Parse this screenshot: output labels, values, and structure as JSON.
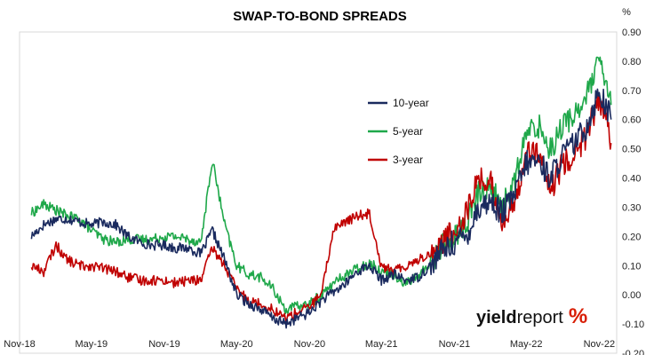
{
  "chart_data": {
    "type": "line",
    "title": "SWAP-TO-BOND SPREADS",
    "y_unit": "%",
    "ylim": [
      -0.2,
      0.9
    ],
    "y_ticks": [
      "0.90",
      "0.80",
      "0.70",
      "0.60",
      "0.50",
      "0.40",
      "0.30",
      "0.20",
      "0.10",
      "0.00",
      "-0.10",
      "-0.20"
    ],
    "y_tick_values": [
      0.9,
      0.8,
      0.7,
      0.6,
      0.5,
      0.4,
      0.3,
      0.2,
      0.1,
      0.0,
      -0.1,
      -0.2
    ],
    "x_ticks": [
      "Nov-18",
      "May-19",
      "Nov-19",
      "May-20",
      "Nov-20",
      "May-21",
      "Nov-21",
      "May-22",
      "Nov-22"
    ],
    "xlim": [
      "2018-11-01",
      "2022-12-15"
    ],
    "grid": false,
    "legend_position": "upper-middle",
    "series": [
      {
        "name": "10-year",
        "color": "#1a2a5e",
        "points": [
          [
            "2018-12-01",
            0.2
          ],
          [
            "2019-01-01",
            0.24
          ],
          [
            "2019-02-01",
            0.26
          ],
          [
            "2019-03-01",
            0.26
          ],
          [
            "2019-04-01",
            0.25
          ],
          [
            "2019-05-01",
            0.24
          ],
          [
            "2019-06-01",
            0.25
          ],
          [
            "2019-07-01",
            0.24
          ],
          [
            "2019-08-01",
            0.2
          ],
          [
            "2019-09-01",
            0.18
          ],
          [
            "2019-10-01",
            0.17
          ],
          [
            "2019-11-01",
            0.17
          ],
          [
            "2019-12-01",
            0.16
          ],
          [
            "2020-01-01",
            0.16
          ],
          [
            "2020-02-01",
            0.14
          ],
          [
            "2020-03-01",
            0.22
          ],
          [
            "2020-04-01",
            0.12
          ],
          [
            "2020-05-01",
            0.0
          ],
          [
            "2020-06-01",
            -0.03
          ],
          [
            "2020-07-01",
            -0.05
          ],
          [
            "2020-08-01",
            -0.08
          ],
          [
            "2020-09-01",
            -0.1
          ],
          [
            "2020-10-01",
            -0.08
          ],
          [
            "2020-11-01",
            -0.06
          ],
          [
            "2020-12-01",
            -0.02
          ],
          [
            "2021-01-01",
            0.01
          ],
          [
            "2021-02-01",
            0.04
          ],
          [
            "2021-03-01",
            0.08
          ],
          [
            "2021-04-01",
            0.1
          ],
          [
            "2021-05-01",
            0.05
          ],
          [
            "2021-06-01",
            0.07
          ],
          [
            "2021-07-01",
            0.05
          ],
          [
            "2021-08-01",
            0.06
          ],
          [
            "2021-09-01",
            0.1
          ],
          [
            "2021-10-01",
            0.15
          ],
          [
            "2021-11-01",
            0.18
          ],
          [
            "2021-12-01",
            0.2
          ],
          [
            "2022-01-01",
            0.3
          ],
          [
            "2022-02-01",
            0.32
          ],
          [
            "2022-03-01",
            0.28
          ],
          [
            "2022-04-01",
            0.34
          ],
          [
            "2022-05-01",
            0.45
          ],
          [
            "2022-06-01",
            0.46
          ],
          [
            "2022-07-01",
            0.4
          ],
          [
            "2022-08-01",
            0.48
          ],
          [
            "2022-09-01",
            0.52
          ],
          [
            "2022-10-01",
            0.58
          ],
          [
            "2022-11-01",
            0.7
          ],
          [
            "2022-12-01",
            0.6
          ]
        ]
      },
      {
        "name": "5-year",
        "color": "#1fa84a",
        "points": [
          [
            "2018-12-01",
            0.28
          ],
          [
            "2019-01-01",
            0.31
          ],
          [
            "2019-02-01",
            0.29
          ],
          [
            "2019-03-01",
            0.27
          ],
          [
            "2019-04-01",
            0.26
          ],
          [
            "2019-05-01",
            0.22
          ],
          [
            "2019-06-01",
            0.19
          ],
          [
            "2019-07-01",
            0.18
          ],
          [
            "2019-08-01",
            0.19
          ],
          [
            "2019-09-01",
            0.19
          ],
          [
            "2019-10-01",
            0.19
          ],
          [
            "2019-11-01",
            0.2
          ],
          [
            "2019-12-01",
            0.2
          ],
          [
            "2020-01-01",
            0.19
          ],
          [
            "2020-02-01",
            0.18
          ],
          [
            "2020-03-01",
            0.46
          ],
          [
            "2020-04-01",
            0.24
          ],
          [
            "2020-05-01",
            0.1
          ],
          [
            "2020-06-01",
            0.07
          ],
          [
            "2020-07-01",
            0.06
          ],
          [
            "2020-08-01",
            0.02
          ],
          [
            "2020-09-01",
            -0.05
          ],
          [
            "2020-10-01",
            -0.04
          ],
          [
            "2020-11-01",
            -0.03
          ],
          [
            "2020-12-01",
            0.0
          ],
          [
            "2021-01-01",
            0.04
          ],
          [
            "2021-02-01",
            0.07
          ],
          [
            "2021-03-01",
            0.09
          ],
          [
            "2021-04-01",
            0.11
          ],
          [
            "2021-05-01",
            0.08
          ],
          [
            "2021-06-01",
            0.07
          ],
          [
            "2021-07-01",
            0.04
          ],
          [
            "2021-08-01",
            0.06
          ],
          [
            "2021-09-01",
            0.11
          ],
          [
            "2021-10-01",
            0.17
          ],
          [
            "2021-11-01",
            0.2
          ],
          [
            "2021-12-01",
            0.24
          ],
          [
            "2022-01-01",
            0.35
          ],
          [
            "2022-02-01",
            0.37
          ],
          [
            "2022-03-01",
            0.3
          ],
          [
            "2022-04-01",
            0.38
          ],
          [
            "2022-05-01",
            0.55
          ],
          [
            "2022-06-01",
            0.58
          ],
          [
            "2022-07-01",
            0.5
          ],
          [
            "2022-08-01",
            0.58
          ],
          [
            "2022-09-01",
            0.62
          ],
          [
            "2022-10-01",
            0.68
          ],
          [
            "2022-11-01",
            0.8
          ],
          [
            "2022-12-01",
            0.65
          ]
        ]
      },
      {
        "name": "3-year",
        "color": "#c00000",
        "points": [
          [
            "2018-12-01",
            0.1
          ],
          [
            "2019-01-01",
            0.08
          ],
          [
            "2019-02-01",
            0.17
          ],
          [
            "2019-03-01",
            0.12
          ],
          [
            "2019-04-01",
            0.1
          ],
          [
            "2019-05-01",
            0.1
          ],
          [
            "2019-06-01",
            0.09
          ],
          [
            "2019-07-01",
            0.08
          ],
          [
            "2019-08-01",
            0.06
          ],
          [
            "2019-09-01",
            0.05
          ],
          [
            "2019-10-01",
            0.05
          ],
          [
            "2019-11-01",
            0.05
          ],
          [
            "2019-12-01",
            0.04
          ],
          [
            "2020-01-01",
            0.05
          ],
          [
            "2020-02-01",
            0.05
          ],
          [
            "2020-03-01",
            0.16
          ],
          [
            "2020-04-01",
            0.1
          ],
          [
            "2020-05-01",
            0.02
          ],
          [
            "2020-06-01",
            -0.02
          ],
          [
            "2020-07-01",
            -0.03
          ],
          [
            "2020-08-01",
            -0.05
          ],
          [
            "2020-09-01",
            -0.08
          ],
          [
            "2020-10-01",
            -0.06
          ],
          [
            "2020-11-01",
            -0.04
          ],
          [
            "2020-12-01",
            0.0
          ],
          [
            "2021-01-01",
            0.23
          ],
          [
            "2021-02-01",
            0.25
          ],
          [
            "2021-03-01",
            0.27
          ],
          [
            "2021-04-01",
            0.28
          ],
          [
            "2021-05-01",
            0.1
          ],
          [
            "2021-06-01",
            0.08
          ],
          [
            "2021-07-01",
            0.1
          ],
          [
            "2021-08-01",
            0.12
          ],
          [
            "2021-09-01",
            0.14
          ],
          [
            "2021-10-01",
            0.18
          ],
          [
            "2021-11-01",
            0.22
          ],
          [
            "2021-12-01",
            0.28
          ],
          [
            "2022-01-01",
            0.4
          ],
          [
            "2022-02-01",
            0.38
          ],
          [
            "2022-03-01",
            0.25
          ],
          [
            "2022-04-01",
            0.3
          ],
          [
            "2022-05-01",
            0.5
          ],
          [
            "2022-06-01",
            0.48
          ],
          [
            "2022-07-01",
            0.35
          ],
          [
            "2022-08-01",
            0.45
          ],
          [
            "2022-09-01",
            0.48
          ],
          [
            "2022-10-01",
            0.55
          ],
          [
            "2022-11-01",
            0.68
          ],
          [
            "2022-12-01",
            0.52
          ]
        ]
      }
    ]
  },
  "logo": {
    "brand_bold": "yield",
    "brand_regular": "report",
    "brand_symbol": "%"
  }
}
